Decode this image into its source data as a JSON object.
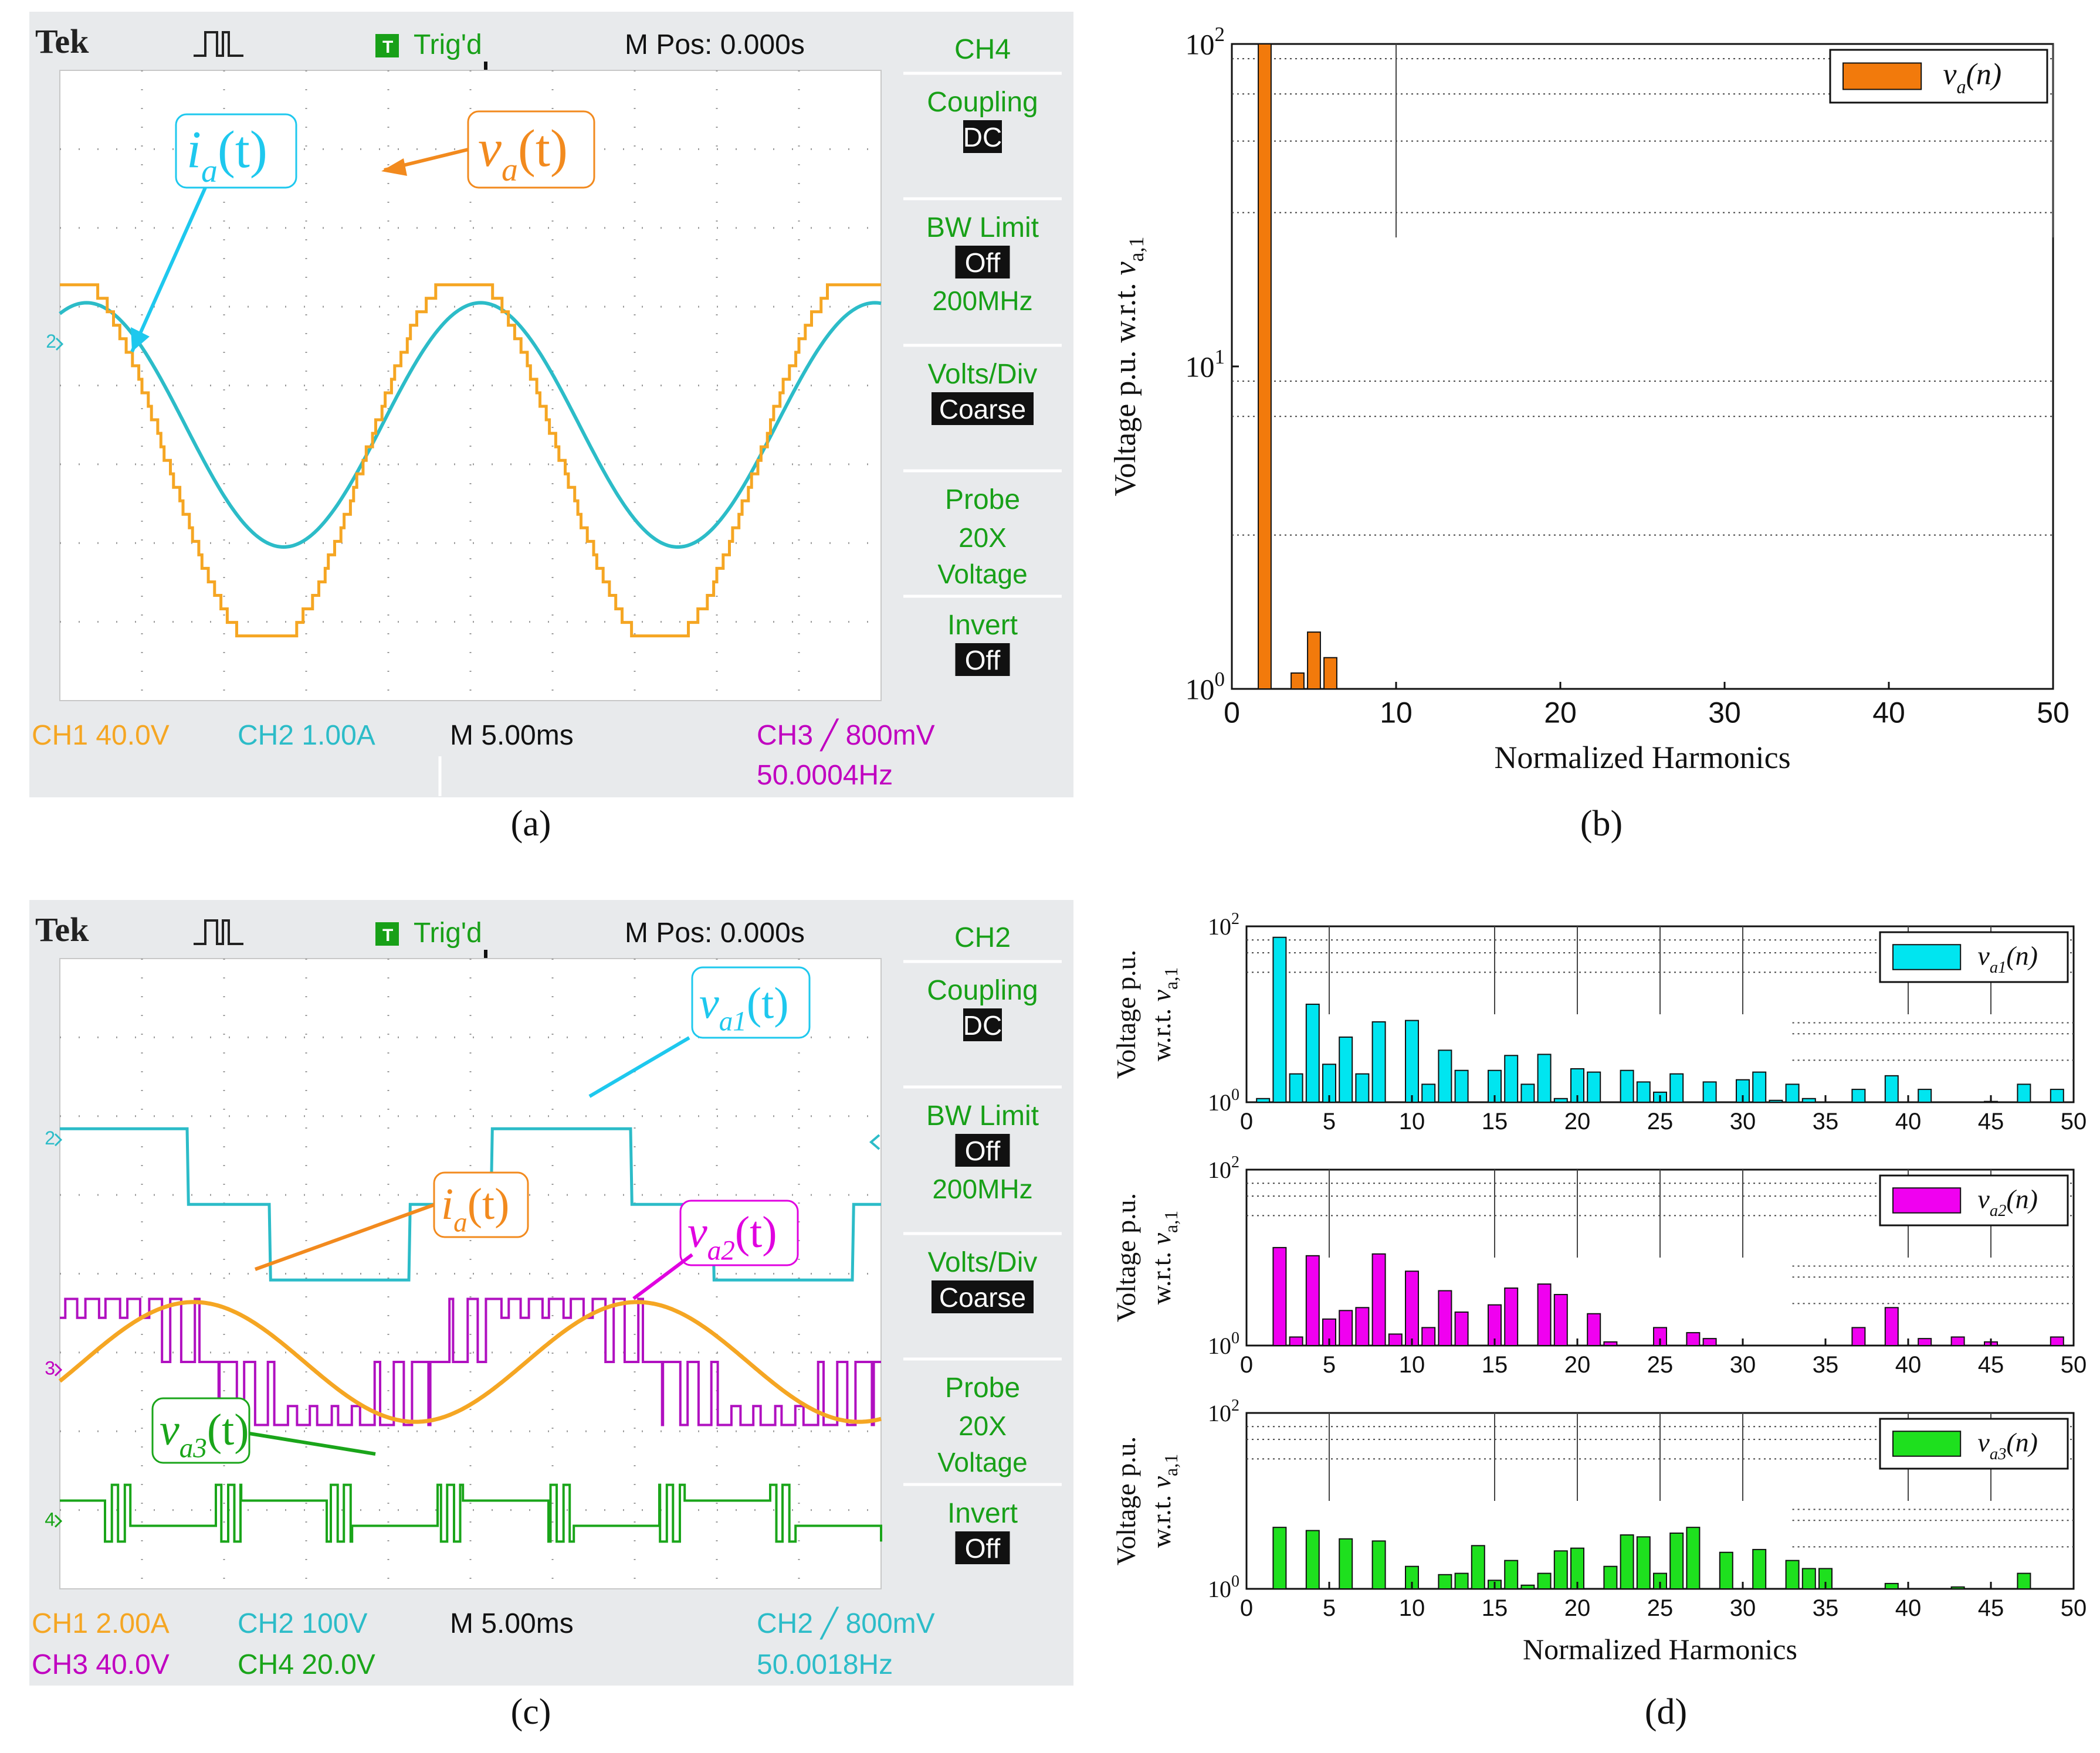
{
  "chart_data": [
    {
      "id": "a",
      "type": "line",
      "title": "",
      "caption": "(a)",
      "scope": {
        "brand": "Tek",
        "trigger_status": "Trig'd",
        "m_pos": "M Pos: 0.000s",
        "menu_channel": "CH4",
        "menu": [
          {
            "label": "Coupling",
            "value": "DC"
          },
          {
            "label": "BW Limit",
            "value": "Off",
            "extra": "200MHz"
          },
          {
            "label": "Volts/Div",
            "value": "Coarse"
          },
          {
            "label": "Probe",
            "lines": [
              "20X",
              "Voltage"
            ]
          },
          {
            "label": "Invert",
            "value": "Off"
          }
        ],
        "readouts": [
          {
            "ch": "CH1",
            "val": "40.0V",
            "color": "#f5a623"
          },
          {
            "ch": "CH2",
            "val": "1.00A",
            "color": "#2cbcc8"
          },
          {
            "ch": "M",
            "val": "5.00ms",
            "color": "#111111"
          },
          {
            "ch": "CH3",
            "val": "800mV",
            "color": "#c000c0"
          },
          {
            "ch": "",
            "val": "50.0004Hz",
            "color": "#c000c0"
          }
        ],
        "marker_label": "2"
      },
      "series": [
        {
          "name": "v_a(t)",
          "color": "#f5a623",
          "shape": "stepped-sine",
          "amplitude": 4.8,
          "offset": -1.9,
          "period_div": 4.8
        },
        {
          "name": "i_a(t)",
          "color": "#2cbcc8",
          "shape": "sine",
          "amplitude": 3.1,
          "offset": -1.0,
          "period_div": 4.8
        }
      ],
      "annotations": [
        {
          "text_main": "i",
          "text_sub": "a",
          "arg": "(t)",
          "color": "#1ec8ee"
        },
        {
          "text_main": "v",
          "text_sub": "a",
          "arg": "(t)",
          "color": "#f28a1e"
        }
      ],
      "xlabel": "",
      "ylabel": ""
    },
    {
      "id": "b",
      "type": "bar",
      "caption": "(b)",
      "title": "",
      "xlabel": "Normalized Harmonics",
      "ylabel": "Voltage p.u. w.r.t.",
      "ylabel_var": "v",
      "ylabel_sub": "a,1",
      "yscale": "log",
      "ylim": [
        1,
        100
      ],
      "xlim": [
        0,
        50
      ],
      "xticks": [
        0,
        10,
        20,
        30,
        40,
        50
      ],
      "yticks": [
        {
          "base": "10",
          "exp": "0"
        },
        {
          "base": "10",
          "exp": "1"
        },
        {
          "base": "10",
          "exp": "2"
        }
      ],
      "legend": {
        "label_main": "v",
        "label_sub": "a",
        "label_arg": "(n)",
        "color": "#f27a0c"
      },
      "x": [
        2,
        4,
        5,
        6
      ],
      "values": [
        100,
        1.12,
        1.5,
        1.25
      ],
      "color": "#f27a0c"
    },
    {
      "id": "c",
      "type": "line",
      "title": "",
      "caption": "(c)",
      "scope": {
        "brand": "Tek",
        "trigger_status": "Trig'd",
        "m_pos": "M Pos: 0.000s",
        "menu_channel": "CH2",
        "menu": [
          {
            "label": "Coupling",
            "value": "DC"
          },
          {
            "label": "BW Limit",
            "value": "Off",
            "extra": "200MHz"
          },
          {
            "label": "Volts/Div",
            "value": "Coarse"
          },
          {
            "label": "Probe",
            "lines": [
              "20X",
              "Voltage"
            ]
          },
          {
            "label": "Invert",
            "value": "Off"
          }
        ],
        "readouts": [
          {
            "ch": "CH1",
            "val": "2.00A",
            "color": "#f5a623"
          },
          {
            "ch": "CH2",
            "val": "100V",
            "color": "#2cbcc8"
          },
          {
            "ch": "M",
            "val": "5.00ms",
            "color": "#111111"
          },
          {
            "ch": "CH2",
            "val": "800mV",
            "color": "#2cbcc8"
          },
          {
            "ch": "CH3",
            "val": "40.0V",
            "color": "#c000c0"
          },
          {
            "ch": "CH4",
            "val": "20.0V",
            "color": "#1aa51a"
          },
          {
            "ch": "",
            "val": "50.0018Hz",
            "color": "#2cbcc8"
          }
        ],
        "marker_labels": [
          "2",
          "3",
          "4"
        ]
      },
      "series": [
        {
          "name": "v_a1(t)",
          "color": "#2cbcc8",
          "shape": "three-level"
        },
        {
          "name": "i_a(t)",
          "color": "#f5a623",
          "shape": "sine"
        },
        {
          "name": "v_a2(t)",
          "color": "#b010c0",
          "shape": "pwm-stepped"
        },
        {
          "name": "v_a3(t)",
          "color": "#1aa51a",
          "shape": "pwm"
        }
      ],
      "annotations": [
        {
          "text_main": "v",
          "text_sub": "a1",
          "arg": "(t)",
          "color": "#1ec8ee"
        },
        {
          "text_main": "i",
          "text_sub": "a",
          "arg": "(t)",
          "color": "#f28a1e"
        },
        {
          "text_main": "v",
          "text_sub": "a2",
          "arg": "(t)",
          "color": "#e000e0"
        },
        {
          "text_main": "v",
          "text_sub": "a3",
          "arg": "(t)",
          "color": "#1aa51a"
        }
      ],
      "xlabel": "",
      "ylabel": ""
    },
    {
      "id": "d1",
      "type": "bar",
      "caption": "",
      "title": "",
      "xlabel": "",
      "ylabel_line1": "Voltage p.u.",
      "ylabel_line2": "w.r.t.",
      "ylabel_var": "v",
      "ylabel_sub": "a,1",
      "yscale": "log",
      "ylim": [
        1,
        100
      ],
      "xlim": [
        0,
        50
      ],
      "xticks": [
        0,
        5,
        10,
        15,
        20,
        25,
        30,
        35,
        40,
        45,
        50
      ],
      "yticks": [
        {
          "base": "10",
          "exp": "0"
        },
        {
          "base": "10",
          "exp": "2"
        }
      ],
      "legend": {
        "label_main": "v",
        "label_sub": "a1",
        "label_arg": "(n)",
        "color": "#00e5f0"
      },
      "color": "#00e5f0",
      "x": [
        1,
        2,
        3,
        4,
        5,
        6,
        7,
        8,
        10,
        11,
        12,
        13,
        15,
        16,
        17,
        18,
        19,
        20,
        21,
        23,
        24,
        25,
        26,
        28,
        30,
        31,
        32,
        33,
        34,
        37,
        39,
        41,
        45,
        47,
        49
      ],
      "values": [
        1.1,
        75,
        2.1,
        13,
        2.7,
        5.5,
        2.1,
        8.2,
        8.5,
        1.6,
        3.9,
        2.3,
        2.3,
        3.4,
        1.6,
        3.5,
        1.1,
        2.4,
        2.2,
        2.3,
        1.7,
        1.3,
        2.1,
        1.7,
        1.8,
        2.2,
        1.05,
        1.6,
        1.1,
        1.4,
        2.0,
        1.4,
        1.02,
        1.6,
        1.4
      ]
    },
    {
      "id": "d2",
      "type": "bar",
      "caption": "",
      "title": "",
      "xlabel": "",
      "ylabel_line1": "Voltage p.u.",
      "ylabel_line2": "w.r.t.",
      "ylabel_var": "v",
      "ylabel_sub": "a,1",
      "yscale": "log",
      "ylim": [
        1,
        100
      ],
      "xlim": [
        0,
        50
      ],
      "xticks": [
        0,
        5,
        10,
        15,
        20,
        25,
        30,
        35,
        40,
        45,
        50
      ],
      "yticks": [
        {
          "base": "10",
          "exp": "0"
        },
        {
          "base": "10",
          "exp": "2"
        }
      ],
      "legend": {
        "label_main": "v",
        "label_sub": "a2",
        "label_arg": "(n)",
        "color": "#f000f0"
      },
      "color": "#f000f0",
      "x": [
        2,
        3,
        4,
        5,
        6,
        7,
        8,
        9,
        10,
        11,
        12,
        13,
        15,
        16,
        18,
        19,
        21,
        22,
        25,
        27,
        28,
        37,
        39,
        41,
        43,
        45,
        49
      ],
      "values": [
        13,
        1.25,
        10.5,
        2.0,
        2.5,
        2.7,
        11,
        1.35,
        7.0,
        1.6,
        4.2,
        2.4,
        2.9,
        4.5,
        5.0,
        3.8,
        2.3,
        1.1,
        1.6,
        1.4,
        1.2,
        1.6,
        2.7,
        1.2,
        1.25,
        1.1,
        1.25
      ]
    },
    {
      "id": "d3",
      "type": "bar",
      "caption": "(d)",
      "title": "",
      "xlabel": "Normalized Harmonics",
      "ylabel_line1": "Voltage p.u.",
      "ylabel_line2": "w.r.t.",
      "ylabel_var": "v",
      "ylabel_sub": "a,1",
      "yscale": "log",
      "ylim": [
        1,
        100
      ],
      "xlim": [
        0,
        50
      ],
      "xticks": [
        0,
        5,
        10,
        15,
        20,
        25,
        30,
        35,
        40,
        45,
        50
      ],
      "yticks": [
        {
          "base": "10",
          "exp": "0"
        },
        {
          "base": "10",
          "exp": "2"
        }
      ],
      "legend": {
        "label_main": "v",
        "label_sub": "a3",
        "label_arg": "(n)",
        "color": "#1ee01e"
      },
      "color": "#1ee01e",
      "x": [
        2,
        4,
        6,
        8,
        10,
        12,
        13,
        14,
        15,
        16,
        17,
        18,
        19,
        20,
        22,
        23,
        24,
        25,
        26,
        27,
        29,
        31,
        33,
        34,
        35,
        39,
        43,
        47
      ],
      "values": [
        5.0,
        4.6,
        3.7,
        3.5,
        1.8,
        1.45,
        1.5,
        3.1,
        1.25,
        2.1,
        1.1,
        1.5,
        2.7,
        2.9,
        1.8,
        4.1,
        3.9,
        1.5,
        4.3,
        5.0,
        2.6,
        2.8,
        2.1,
        1.7,
        1.7,
        1.15,
        1.05,
        1.5
      ]
    }
  ]
}
